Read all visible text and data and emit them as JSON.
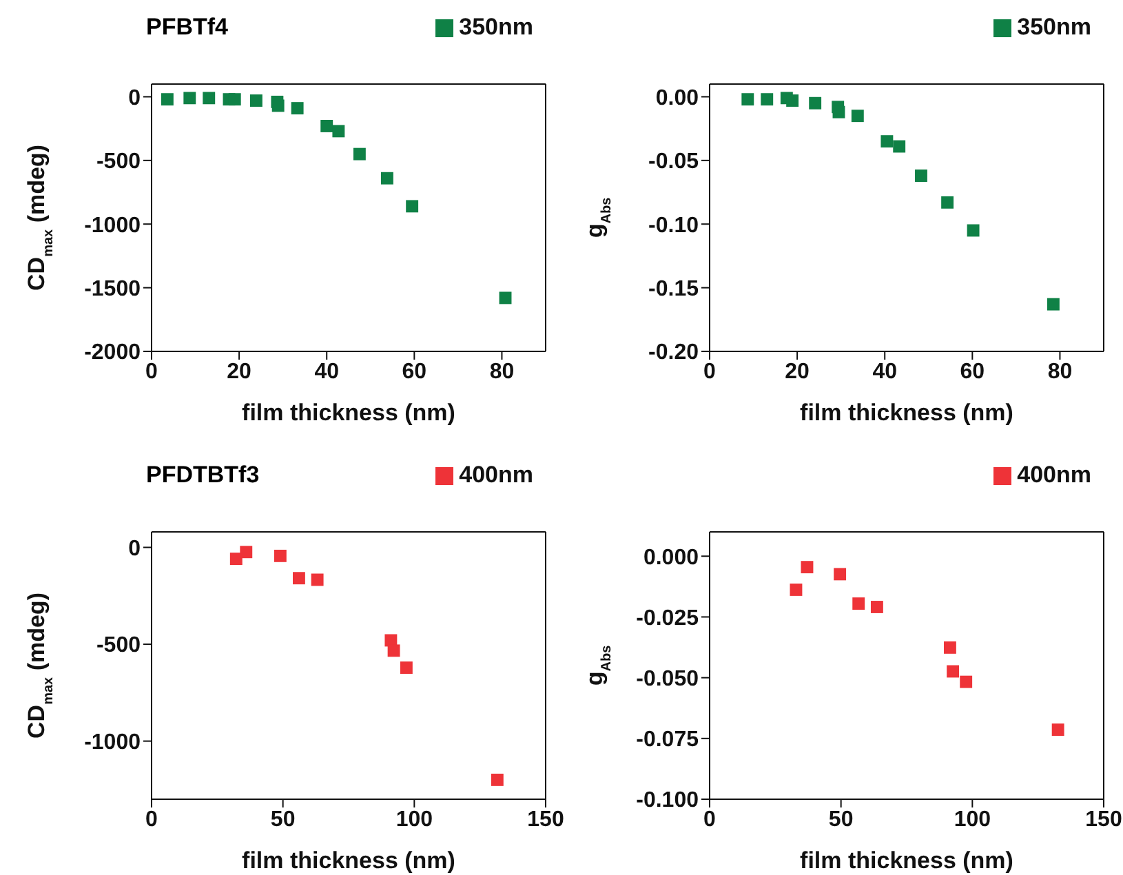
{
  "chart_data": [
    {
      "type": "scatter",
      "title": "PFBTf4",
      "xlabel": "film thickness (nm)",
      "ylabel": "CD$_{max}$ (mdeg)",
      "marker": "square",
      "legend": "top right",
      "xlim": [
        0,
        90
      ],
      "xticks": [
        0,
        20,
        40,
        60,
        80
      ],
      "ylim": [
        -2000,
        100
      ],
      "yticks": [
        -2000,
        -1500,
        -1000,
        -500,
        0
      ],
      "x": [
        3.6,
        8.7,
        13.1,
        17.7,
        19,
        23.9,
        28.7,
        28.9,
        33.3,
        40,
        42.7,
        47.5,
        53.8,
        59.5,
        80.8
      ],
      "series": [
        {
          "name": "350nm",
          "color": "#0f8146",
          "values": [
            -20,
            -10,
            -10,
            -20,
            -20,
            -30,
            -40,
            -70,
            -90,
            -230,
            -270,
            -450,
            -640,
            -860,
            -1580
          ]
        }
      ]
    },
    {
      "type": "scatter",
      "xlabel": "film thickness (nm)",
      "ylabel": "g$_{Abs}$",
      "marker": "square",
      "legend": "top right",
      "xlim": [
        0,
        90
      ],
      "xticks": [
        0,
        20,
        40,
        60,
        80
      ],
      "ylim": [
        -0.2,
        0.01
      ],
      "yticks": [
        {
          "value": -0.2,
          "label": "-0.20"
        },
        {
          "value": -0.15,
          "label": "-0.15"
        },
        {
          "value": -0.1,
          "label": "-0.10"
        },
        {
          "value": -0.05,
          "label": "-0.05"
        },
        {
          "value": 0,
          "label": "0.00"
        }
      ],
      "x": [
        8.7,
        13.1,
        17.6,
        18.9,
        24.1,
        29.3,
        29.5,
        33.8,
        40.5,
        43.3,
        48.3,
        54.3,
        60.2,
        78.5
      ],
      "series": [
        {
          "name": "350nm",
          "color": "#0f8146",
          "values": [
            -0.002,
            -0.002,
            -0.001,
            -0.003,
            -0.005,
            -0.008,
            -0.012,
            -0.015,
            -0.035,
            -0.039,
            -0.062,
            -0.083,
            -0.105,
            -0.163
          ]
        }
      ]
    },
    {
      "type": "scatter",
      "title": "PFDTBTf3",
      "xlabel": "film thickness (nm)",
      "ylabel": "CD$_{max}$ (mdeg)",
      "marker": "square",
      "legend": "top right",
      "xlim": [
        0,
        150
      ],
      "xticks": [
        0,
        50,
        100,
        150
      ],
      "ylim": [
        -1300,
        80
      ],
      "yticks": [
        -1000,
        -500,
        0
      ],
      "x": [
        32.2,
        36,
        49,
        56.1,
        63.1,
        91.1,
        92.2,
        97,
        131.6
      ],
      "series": [
        {
          "name": "400nm",
          "color": "#ee3338",
          "values": [
            -59,
            -24,
            -44,
            -159,
            -167,
            -480,
            -533,
            -621,
            -1200
          ]
        }
      ]
    },
    {
      "type": "scatter",
      "xlabel": "film thickness (nm)",
      "ylabel": "g$_{Abs}$",
      "marker": "square",
      "legend": "top right",
      "xlim": [
        0,
        150
      ],
      "xticks": [
        0,
        50,
        100,
        150
      ],
      "ylim": [
        -0.1,
        0.01
      ],
      "yticks": [
        {
          "value": -0.1,
          "label": "-0.100"
        },
        {
          "value": -0.075,
          "label": "-0.075"
        },
        {
          "value": -0.05,
          "label": "-0.050"
        },
        {
          "value": -0.025,
          "label": "-0.025"
        },
        {
          "value": 0,
          "label": "0.000"
        }
      ],
      "x": [
        32.9,
        37.1,
        49.6,
        56.7,
        63.7,
        91.5,
        92.6,
        97.6,
        132.6
      ],
      "series": [
        {
          "name": "400nm",
          "color": "#ee3338",
          "values": [
            -0.0138,
            -0.0045,
            -0.0074,
            -0.0195,
            -0.0209,
            -0.0376,
            -0.0474,
            -0.0517,
            -0.0714
          ]
        }
      ]
    }
  ]
}
